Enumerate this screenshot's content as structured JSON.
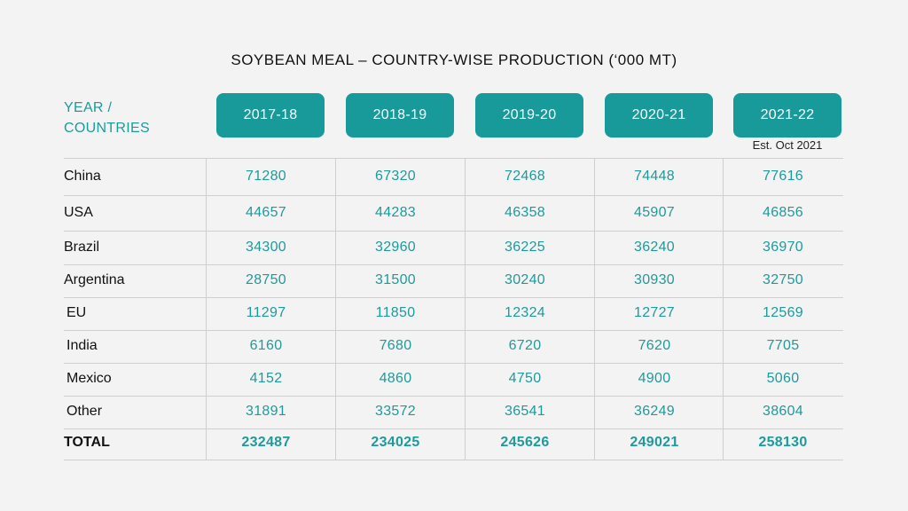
{
  "title": "SOYBEAN MEAL – COUNTRY-WISE PRODUCTION (‘000 MT)",
  "header_label_line1": "YEAR /",
  "header_label_line2": "COUNTRIES",
  "years": [
    "2017-18",
    "2018-19",
    "2019-20",
    "2020-21",
    "2021-22"
  ],
  "estimate_note": "Est. Oct 2021",
  "rows": [
    {
      "country": "China",
      "values": [
        "71280",
        "67320",
        "72468",
        "74448",
        "77616"
      ]
    },
    {
      "country": "USA",
      "values": [
        "44657",
        "44283",
        "46358",
        "45907",
        "46856"
      ]
    },
    {
      "country": "Brazil",
      "values": [
        "34300",
        "32960",
        "36225",
        "36240",
        "36970"
      ]
    },
    {
      "country": "Argentina",
      "values": [
        "28750",
        "31500",
        "30240",
        "30930",
        "32750"
      ]
    },
    {
      "country": "EU",
      "values": [
        "11297",
        "11850",
        "12324",
        "12727",
        "12569"
      ]
    },
    {
      "country": "India",
      "values": [
        "6160",
        "7680",
        "6720",
        "7620",
        "7705"
      ]
    },
    {
      "country": "Mexico",
      "values": [
        "4152",
        "4860",
        "4750",
        "4900",
        "5060"
      ]
    },
    {
      "country": "Other",
      "values": [
        "31891",
        "33572",
        "36541",
        "36249",
        "38604"
      ]
    },
    {
      "country": "TOTAL",
      "values": [
        "232487",
        "234025",
        "245626",
        "249021",
        "258130"
      ]
    }
  ],
  "colors": {
    "accent": "#18999a",
    "background": "#f3f3f3",
    "grid": "#cfcfcf"
  },
  "chart_data": {
    "type": "table",
    "title": "SOYBEAN MEAL – COUNTRY-WISE PRODUCTION (‘000 MT)",
    "columns": [
      "2017-18",
      "2018-19",
      "2019-20",
      "2020-21",
      "2021-22"
    ],
    "rows": [
      "China",
      "USA",
      "Brazil",
      "Argentina",
      "EU",
      "India",
      "Mexico",
      "Other",
      "TOTAL"
    ],
    "values": [
      [
        71280,
        67320,
        72468,
        74448,
        77616
      ],
      [
        44657,
        44283,
        46358,
        45907,
        46856
      ],
      [
        34300,
        32960,
        36225,
        36240,
        36970
      ],
      [
        28750,
        31500,
        30240,
        30930,
        32750
      ],
      [
        11297,
        11850,
        12324,
        12727,
        12569
      ],
      [
        6160,
        7680,
        6720,
        7620,
        7705
      ],
      [
        4152,
        4860,
        4750,
        4900,
        5060
      ],
      [
        31891,
        33572,
        36541,
        36249,
        38604
      ],
      [
        232487,
        234025,
        245626,
        249021,
        258130
      ]
    ],
    "notes": [
      "Est. Oct 2021"
    ]
  }
}
